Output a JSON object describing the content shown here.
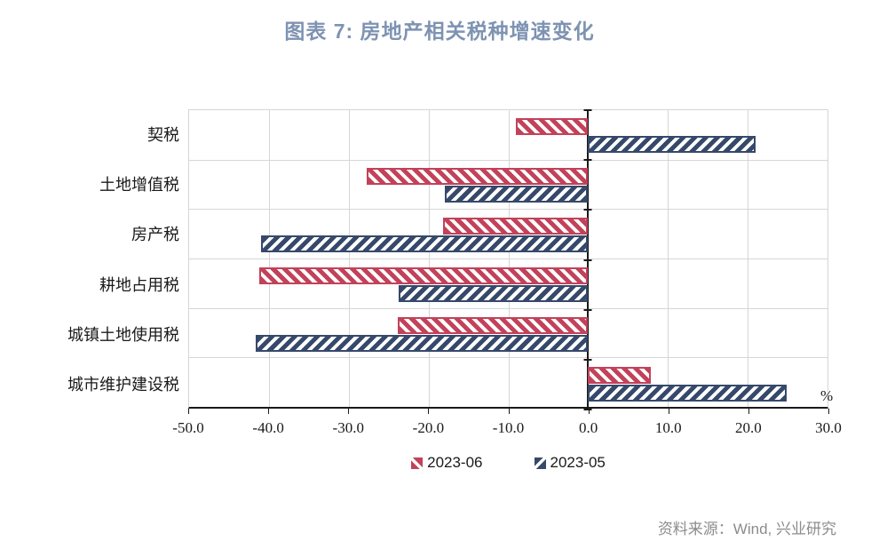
{
  "title": "图表 7: 房地产相关税种增速变化",
  "unit_label": "%",
  "source": "资料来源：Wind, 兴业研究",
  "colors": {
    "bar_06": "#C2425A",
    "bar_05": "#36496B",
    "title_text": "#7E93B2",
    "gridline": "#D6D6D6",
    "axis_line": "#1A1A1A",
    "tick_text": "#1A1A1A",
    "source_text": "#8C8C8C"
  },
  "chart_data": {
    "type": "bar",
    "orientation": "horizontal",
    "title": "图表 7: 房地产相关税种增速变化",
    "xlabel": "%",
    "ylabel": "",
    "categories": [
      "契税",
      "土地增值税",
      "房产税",
      "耕地占用税",
      "城镇土地使用税",
      "城市维护建设税"
    ],
    "series": [
      {
        "name": "2023-06",
        "color": "#C2425A",
        "hatch": "\\\\",
        "values": [
          -9.0,
          -27.7,
          -18.2,
          -41.2,
          -23.8,
          7.9
        ]
      },
      {
        "name": "2023-05",
        "color": "#36496B",
        "hatch": "//",
        "values": [
          21.0,
          -18.0,
          -41.0,
          -23.7,
          -41.7,
          24.9
        ]
      }
    ],
    "xlim": [
      -50.0,
      30.0
    ],
    "xticks": [
      -50.0,
      -40.0,
      -30.0,
      -20.0,
      -10.0,
      0.0,
      10.0,
      20.0,
      30.0
    ],
    "xtick_labels": [
      "-50.0",
      "-40.0",
      "-30.0",
      "-20.0",
      "-10.0",
      "0.0",
      "10.0",
      "20.0",
      "30.0"
    ],
    "grid": true,
    "legend_position": "bottom"
  }
}
